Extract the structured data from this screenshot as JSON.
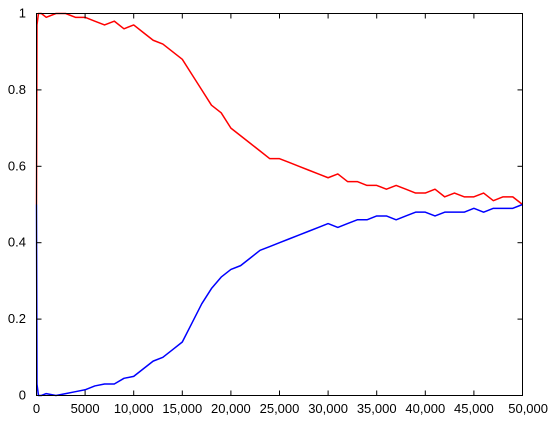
{
  "chart_data": {
    "type": "line",
    "title": "",
    "xlabel": "",
    "ylabel": "",
    "xlim": [
      0,
      50000
    ],
    "ylim": [
      0,
      1
    ],
    "grid": false,
    "legend": "none",
    "x_ticks": [
      0,
      5000,
      10000,
      15000,
      20000,
      25000,
      30000,
      35000,
      40000,
      45000,
      50000
    ],
    "x_tick_labels": [
      "0",
      "5000",
      "10,000",
      "15,000",
      "20,000",
      "25,000",
      "30,000",
      "35,000",
      "40,000",
      "45,000",
      "50,000"
    ],
    "y_ticks": [
      0,
      0.2,
      0.4,
      0.6,
      0.8,
      1
    ],
    "y_tick_labels": [
      "0",
      "0.2",
      "0.4",
      "0.6",
      "0.8",
      "1"
    ],
    "series": [
      {
        "color": "#ff0000",
        "x": [
          0,
          50,
          200,
          500,
          1000,
          2000,
          3000,
          4000,
          5000,
          6000,
          7000,
          8000,
          9000,
          10000,
          11000,
          12000,
          13000,
          14000,
          15000,
          16000,
          17000,
          18000,
          19000,
          20000,
          21000,
          22000,
          23000,
          24000,
          25000,
          26000,
          27000,
          28000,
          29000,
          30000,
          31000,
          32000,
          33000,
          34000,
          35000,
          36000,
          37000,
          38000,
          39000,
          40000,
          41000,
          42000,
          43000,
          44000,
          45000,
          46000,
          47000,
          48000,
          49000,
          50000
        ],
        "y": [
          0.5,
          0.97,
          1.0,
          1.0,
          0.99,
          1.0,
          1.0,
          0.99,
          0.99,
          0.98,
          0.97,
          0.98,
          0.96,
          0.97,
          0.95,
          0.93,
          0.92,
          0.9,
          0.88,
          0.84,
          0.8,
          0.76,
          0.74,
          0.7,
          0.68,
          0.66,
          0.64,
          0.62,
          0.62,
          0.61,
          0.6,
          0.59,
          0.58,
          0.57,
          0.58,
          0.56,
          0.56,
          0.55,
          0.55,
          0.54,
          0.55,
          0.54,
          0.53,
          0.53,
          0.54,
          0.52,
          0.53,
          0.52,
          0.52,
          0.53,
          0.51,
          0.52,
          0.52,
          0.5
        ]
      },
      {
        "color": "#0000ff",
        "x": [
          0,
          50,
          200,
          500,
          1000,
          2000,
          3000,
          4000,
          5000,
          6000,
          7000,
          8000,
          9000,
          10000,
          11000,
          12000,
          13000,
          14000,
          15000,
          16000,
          17000,
          18000,
          19000,
          20000,
          21000,
          22000,
          23000,
          24000,
          25000,
          26000,
          27000,
          28000,
          29000,
          30000,
          31000,
          32000,
          33000,
          34000,
          35000,
          36000,
          37000,
          38000,
          39000,
          40000,
          41000,
          42000,
          43000,
          44000,
          45000,
          46000,
          47000,
          48000,
          49000,
          50000
        ],
        "y": [
          0.5,
          0.03,
          0.0,
          0.0,
          0.005,
          0.0,
          0.005,
          0.01,
          0.015,
          0.025,
          0.03,
          0.03,
          0.045,
          0.05,
          0.07,
          0.09,
          0.1,
          0.12,
          0.14,
          0.19,
          0.24,
          0.28,
          0.31,
          0.33,
          0.34,
          0.36,
          0.38,
          0.39,
          0.4,
          0.41,
          0.42,
          0.43,
          0.44,
          0.45,
          0.44,
          0.45,
          0.46,
          0.46,
          0.47,
          0.47,
          0.46,
          0.47,
          0.48,
          0.48,
          0.47,
          0.48,
          0.48,
          0.48,
          0.49,
          0.48,
          0.49,
          0.49,
          0.49,
          0.5
        ]
      }
    ]
  }
}
